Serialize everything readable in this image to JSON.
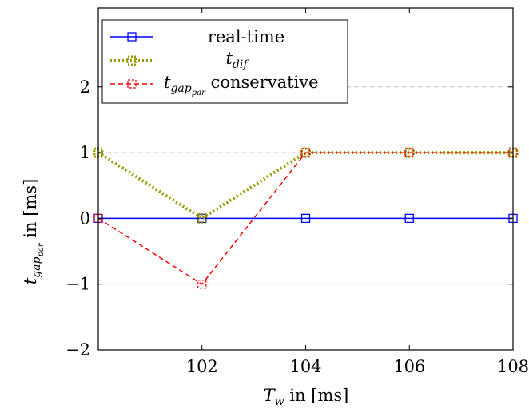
{
  "chart_data": {
    "type": "line",
    "x_label_main": "T",
    "x_label_sub": "w",
    "x_label_rest": " in [ms]",
    "y_label_main": "t",
    "y_label_sub": "gap",
    "y_label_subsub": "par",
    "y_label_rest": " in [ms]",
    "xlim": [
      100,
      108
    ],
    "ylim": [
      -2,
      3.2
    ],
    "x_ticks": [
      102,
      104,
      106,
      108
    ],
    "x_tick_labels": [
      "102",
      "104",
      "106",
      "108"
    ],
    "y_ticks": [
      -2,
      -1,
      0,
      1,
      2
    ],
    "y_tick_labels": [
      "−2",
      "−1",
      "0",
      "1",
      "2"
    ],
    "grid": "horizontal dashed",
    "legend_position": "top-left",
    "series": [
      {
        "id": "rt",
        "legend_text": "real-time",
        "color": "#0000ff",
        "line_style": "solid",
        "marker": "square",
        "x": [
          100,
          102,
          104,
          106,
          108
        ],
        "y": [
          0,
          0,
          0,
          0,
          0
        ]
      },
      {
        "id": "dif",
        "legend_main": "t",
        "legend_sub": "dif",
        "color": "#999900",
        "line_style": "dotted",
        "marker": "square",
        "x": [
          100,
          102,
          104,
          106,
          108
        ],
        "y": [
          1,
          0,
          1,
          1,
          1
        ]
      },
      {
        "id": "gap",
        "legend_main": "t",
        "legend_sub": "gap",
        "legend_subsub": "par",
        "legend_rest": " conservative",
        "color": "#ff0000",
        "line_style": "dashed",
        "marker": "square",
        "x": [
          100,
          102,
          104,
          106,
          108
        ],
        "y": [
          0,
          -1,
          1,
          1,
          1
        ]
      }
    ]
  }
}
